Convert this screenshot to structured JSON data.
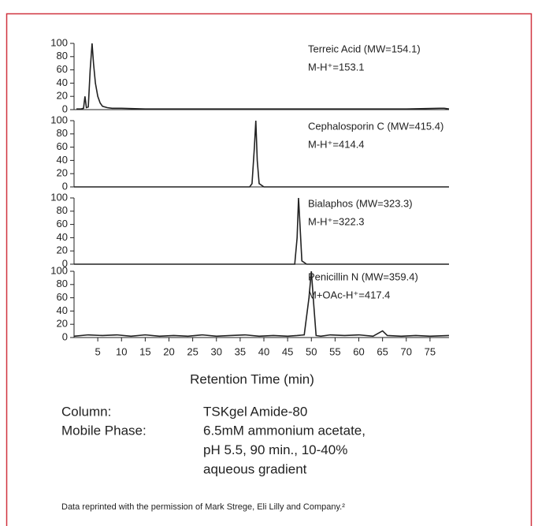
{
  "chart_data": [
    {
      "type": "line",
      "annotations": [
        "Terreic Acid (MW=154.1)",
        "M-H⁺=153.1"
      ],
      "color": "#222222",
      "x": [
        0.5,
        1.5,
        2,
        2.3,
        2.6,
        3,
        3.4,
        3.8,
        4.1,
        4.5,
        5,
        5.5,
        6,
        7,
        8,
        10,
        15,
        30,
        50,
        70,
        77,
        78,
        79
      ],
      "values": [
        1,
        1,
        2,
        20,
        3,
        4,
        60,
        100,
        70,
        40,
        20,
        10,
        5,
        3,
        2,
        2,
        1,
        1,
        1,
        1,
        2,
        2,
        1
      ],
      "xlim": [
        0,
        79
      ],
      "ylim": [
        0,
        100
      ],
      "yticks": [
        0,
        20,
        40,
        60,
        80,
        100
      ]
    },
    {
      "type": "line",
      "annotations": [
        "Cephalosporin C (MW=415.4)",
        "M-H⁺=414.4"
      ],
      "color": "#222222",
      "x": [
        0,
        30,
        37,
        37.5,
        38,
        38.3,
        38.6,
        39,
        40,
        60,
        79
      ],
      "values": [
        0,
        0,
        0,
        5,
        60,
        100,
        40,
        5,
        0,
        0,
        0
      ],
      "xlim": [
        0,
        79
      ],
      "ylim": [
        0,
        100
      ],
      "yticks": [
        0,
        20,
        40,
        60,
        80,
        100
      ]
    },
    {
      "type": "line",
      "annotations": [
        "Bialaphos (MW=323.3)",
        "M-H⁺=322.3"
      ],
      "color": "#222222",
      "x": [
        0,
        45,
        46.5,
        47,
        47.3,
        47.6,
        48,
        49,
        79
      ],
      "values": [
        0,
        0,
        0,
        40,
        100,
        60,
        5,
        0,
        0
      ],
      "xlim": [
        0,
        79
      ],
      "ylim": [
        0,
        100
      ],
      "yticks": [
        0,
        20,
        40,
        60,
        80,
        100
      ]
    },
    {
      "type": "line",
      "annotations": [
        "Penicillin N (MW=359.4)",
        "M+OAc-H⁺=417.4"
      ],
      "color": "#222222",
      "x": [
        0,
        3,
        6,
        9,
        12,
        15,
        18,
        21,
        24,
        27,
        30,
        33,
        36,
        39,
        42,
        45,
        47,
        48.5,
        49.5,
        50,
        50.5,
        51,
        52,
        54,
        57,
        60,
        63,
        65,
        66,
        69,
        72,
        75,
        79
      ],
      "values": [
        2,
        4,
        3,
        4,
        2,
        4,
        2,
        3,
        2,
        4,
        2,
        3,
        4,
        2,
        3,
        2,
        3,
        4,
        60,
        100,
        50,
        3,
        2,
        4,
        3,
        4,
        2,
        10,
        3,
        2,
        3,
        2,
        3
      ],
      "xlim": [
        0,
        79
      ],
      "ylim": [
        0,
        100
      ],
      "yticks": [
        0,
        20,
        40,
        60,
        80,
        100
      ],
      "xticks": [
        5,
        10,
        15,
        20,
        25,
        30,
        35,
        40,
        45,
        50,
        55,
        60,
        65,
        70,
        75
      ],
      "xlabel": "Retention Time (min)"
    }
  ],
  "conditions": [
    {
      "label": "Column:",
      "lines": [
        "TSKgel Amide-80"
      ]
    },
    {
      "label": "Mobile Phase:",
      "lines": [
        "6.5mM  ammonium acetate,",
        "pH 5.5, 90 min., 10-40%",
        "aqueous gradient"
      ]
    }
  ],
  "footnote": "Data reprinted with the permission of Mark Strege, Eli Lilly and Company.²"
}
